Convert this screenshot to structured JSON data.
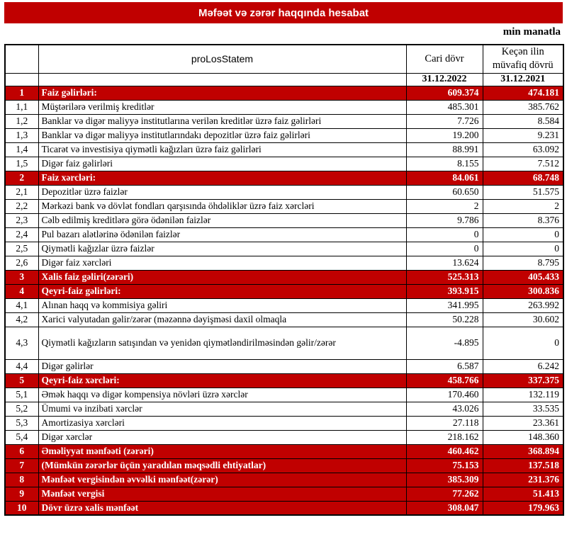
{
  "title": "Məfəət və zərər haqqında hesabat",
  "unit_label": "min manatla",
  "colors": {
    "accent_red": "#C00000",
    "border_black": "#000000",
    "section_text_white": "#FFFFFF",
    "body_text_black": "#000000"
  },
  "table": {
    "header": {
      "name_col": "proLosStatem",
      "col_current": "Cari dövr",
      "col_previous": "Keçən ilin müvafiq dövrü",
      "date_current": "31.12.2022",
      "date_previous": "31.12.2021"
    },
    "rows": [
      {
        "no": "1",
        "label": "Faiz gəlirləri:",
        "current": "609.374",
        "previous": "474.181",
        "type": "section"
      },
      {
        "no": "1,1",
        "label": "Müştərilərə verilmiş kreditlər",
        "current": "485.301",
        "previous": "385.762",
        "type": "item"
      },
      {
        "no": "1,2",
        "label": "Banklar və digər maliyyə institutlarına verilən kreditlər üzrə faiz gəlirləri",
        "current": "7.726",
        "previous": "8.584",
        "type": "item"
      },
      {
        "no": "1,3",
        "label": "Banklar və digər maliyyə institutlarındakı depozitlər üzrə faiz gəlirləri",
        "current": "19.200",
        "previous": "9.231",
        "type": "item"
      },
      {
        "no": "1,4",
        "label": "Ticarət və investisiya qiymətli kağızları üzrə faiz gəlirləri",
        "current": "88.991",
        "previous": "63.092",
        "type": "item"
      },
      {
        "no": "1,5",
        "label": "Digər faiz gəlirləri",
        "current": "8.155",
        "previous": "7.512",
        "type": "item"
      },
      {
        "no": "2",
        "label": "Faiz xərcləri:",
        "current": "84.061",
        "previous": "68.748",
        "type": "section"
      },
      {
        "no": "2,1",
        "label": "Depozitlər üzrə faizlər",
        "current": "60.650",
        "previous": "51.575",
        "type": "item"
      },
      {
        "no": "2,2",
        "label": "Mərkəzi bank və dövlət fondları qarşısında öhdəliklər üzrə faiz xərcləri",
        "current": "2",
        "previous": "2",
        "type": "item"
      },
      {
        "no": "2,3",
        "label": "Cəlb edilmiş kreditlərə görə ödənilən faizlər",
        "current": "9.786",
        "previous": "8.376",
        "type": "item"
      },
      {
        "no": "2,4",
        "label": "Pul bazarı alətlərinə ödənilən faizlər",
        "current": "0",
        "previous": "0",
        "type": "item"
      },
      {
        "no": "2,5",
        "label": "Qiymətli kağızlar üzrə faizlər",
        "current": "0",
        "previous": "0",
        "type": "item"
      },
      {
        "no": "2,6",
        "label": "Digər faiz xərcləri",
        "current": "13.624",
        "previous": "8.795",
        "type": "item"
      },
      {
        "no": "3",
        "label": "Xalis faiz gəliri(zərəri)",
        "current": "525.313",
        "previous": "405.433",
        "type": "section"
      },
      {
        "no": "4",
        "label": "Qeyri-faiz gəlirləri:",
        "current": "393.915",
        "previous": "300.836",
        "type": "section"
      },
      {
        "no": "4,1",
        "label": "Alınan haqq və kommisiya gəliri",
        "current": "341.995",
        "previous": "263.992",
        "type": "item"
      },
      {
        "no": "4,2",
        "label": "Xarici valyutadan gəlir/zərər (məzənnə dəyişməsi daxil olmaqla",
        "current": "50.228",
        "previous": "30.602",
        "type": "item"
      },
      {
        "no": "4,3",
        "label": "Qiymətli kağızların satışından və yenidən qiymətləndirilməsindən gəlir/zərər",
        "current": "-4.895",
        "previous": "0",
        "type": "item",
        "tall": true
      },
      {
        "no": "4,4",
        "label": "Digər gəlirlər",
        "current": "6.587",
        "previous": "6.242",
        "type": "item"
      },
      {
        "no": "5",
        "label": "Qeyri-faiz xərcləri:",
        "current": "458.766",
        "previous": "337.375",
        "type": "section"
      },
      {
        "no": "5,1",
        "label": "Əmək haqqı və digər kompensiya növləri üzrə xərclər",
        "current": "170.460",
        "previous": "132.119",
        "type": "item"
      },
      {
        "no": "5,2",
        "label": "Ümumi və inzibati xərclər",
        "current": "43.026",
        "previous": "33.535",
        "type": "item"
      },
      {
        "no": "5,3",
        "label": "Amortizasiya xərcləri",
        "current": "27.118",
        "previous": "23.361",
        "type": "item"
      },
      {
        "no": "5,4",
        "label": "Digər xərclər",
        "current": "218.162",
        "previous": "148.360",
        "type": "item"
      },
      {
        "no": "6",
        "label": "Əməliyyat mənfəəti (zərəri)",
        "current": "460.462",
        "previous": "368.894",
        "type": "section"
      },
      {
        "no": "7",
        "label": "(Mümkün zərərlər üçün yaradılan məqsədli ehtiyatlar)",
        "current": "75.153",
        "previous": "137.518",
        "type": "section"
      },
      {
        "no": "8",
        "label": "Mənfəət vergisindən əvvəlki mənfəət(zərər)",
        "current": "385.309",
        "previous": "231.376",
        "type": "section"
      },
      {
        "no": "9",
        "label": "Mənfəət vergisi",
        "current": "77.262",
        "previous": "51.413",
        "type": "section"
      },
      {
        "no": "10",
        "label": "Dövr üzrə xalis mənfəət",
        "current": "308.047",
        "previous": "179.963",
        "type": "section"
      }
    ]
  }
}
